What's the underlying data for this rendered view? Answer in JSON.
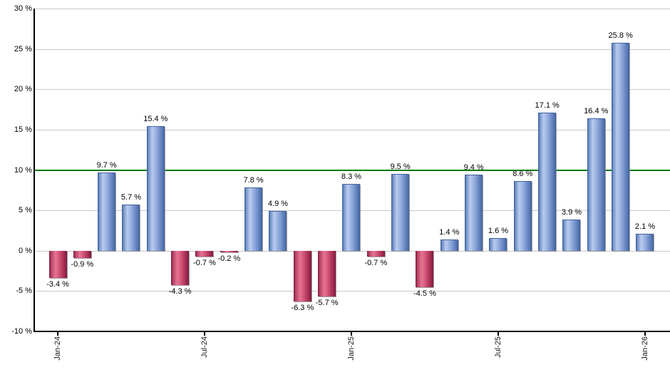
{
  "chart_data": {
    "type": "bar",
    "title": "",
    "xlabel": "",
    "ylabel": "",
    "ylim": [
      -10,
      30
    ],
    "grid": true,
    "values": [
      -3.4,
      -0.9,
      9.7,
      5.7,
      15.4,
      -4.3,
      -0.7,
      -0.2,
      7.8,
      4.9,
      -6.3,
      -5.7,
      8.3,
      -0.7,
      9.5,
      -4.5,
      1.4,
      9.4,
      1.6,
      8.6,
      17.1,
      3.9,
      16.4,
      25.8,
      2.1
    ],
    "bar_labels": [
      "-3.4 %",
      "-0.9 %",
      "9.7 %",
      "5.7 %",
      "15.4 %",
      "-4.3 %",
      "-0.7 %",
      "-0.2 %",
      "7.8 %",
      "4.9 %",
      "-6.3 %",
      "-5.7 %",
      "8.3 %",
      "-0.7 %",
      "9.5 %",
      "-4.5 %",
      "1.4 %",
      "9.4 %",
      "1.6 %",
      "8.6 %",
      "17.1 %",
      "3.9 %",
      "16.4 %",
      "25.8 %",
      "2.1 %"
    ],
    "y_ticks": [
      30,
      25,
      20,
      15,
      10,
      5,
      0,
      -5,
      -10
    ],
    "y_tick_labels": [
      "30 %",
      "25 %",
      "20 %",
      "15 %",
      "10 %",
      "5 %",
      "0 %",
      "-5 %",
      "-10 %"
    ],
    "x_ticks": [
      {
        "index": 0,
        "label": "Jan-24"
      },
      {
        "index": 6,
        "label": "Jul-24"
      },
      {
        "index": 12,
        "label": "Jan-25"
      },
      {
        "index": 18,
        "label": "Jul-25"
      },
      {
        "index": 24,
        "label": "Jan-26"
      }
    ],
    "reference_line": {
      "value": 10,
      "color": "#007a00"
    },
    "colors": {
      "positive_bar": "#7f9cd3",
      "negative_bar": "#c14a6b",
      "grid": "#c9c9c9",
      "axis": "#000000",
      "reference": "#007a00",
      "label_text": "#000000"
    }
  }
}
